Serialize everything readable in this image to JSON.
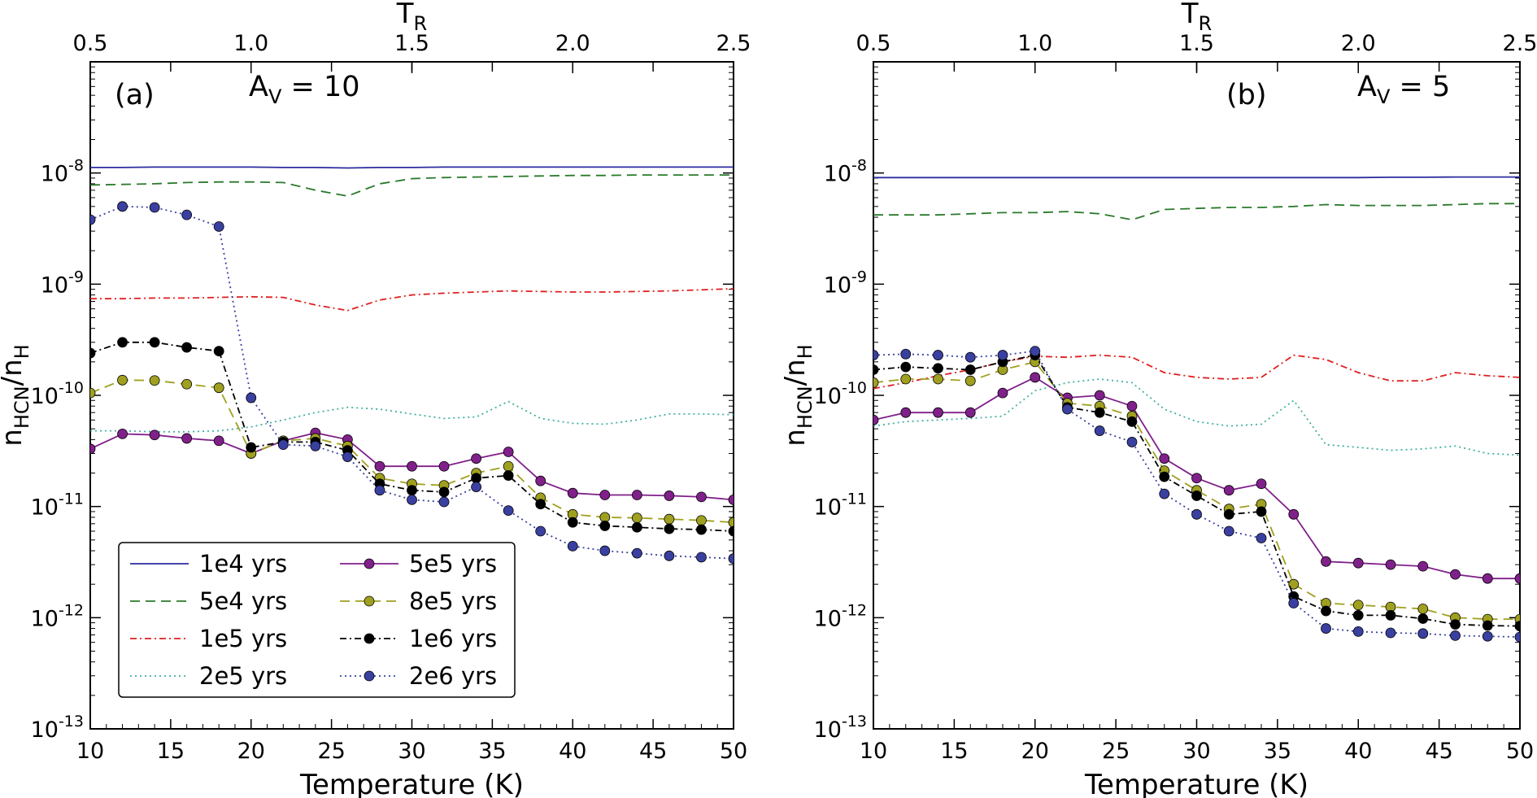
{
  "chart_data": [
    {
      "type": "line",
      "panel_label": "(a)",
      "annotation": {
        "main": "A",
        "sub": "V",
        "rest": " = 10"
      },
      "xlabel": "Temperature (K)",
      "ylabel": {
        "main": "n",
        "sub": "HCN",
        "slash": "/n",
        "sub2": "H"
      },
      "top_xlabel": {
        "main": "T",
        "sub": "R"
      },
      "xlim": [
        10,
        50
      ],
      "ylim": [
        1e-13,
        1e-07
      ],
      "yscale": "log",
      "x_ticks": [
        "10",
        "15",
        "20",
        "25",
        "30",
        "35",
        "40",
        "45",
        "50"
      ],
      "top_ticks": [
        "0.5",
        "1.0",
        "1.5",
        "2.0",
        "2.5"
      ],
      "y_ticks": [
        {
          "value": 1e-08,
          "base": "10",
          "exp": "-8"
        },
        {
          "value": 1e-09,
          "base": "10",
          "exp": "-9"
        },
        {
          "value": 1e-10,
          "base": "10",
          "exp": "-10"
        },
        {
          "value": 1e-11,
          "base": "10",
          "exp": "-11"
        },
        {
          "value": 1e-12,
          "base": "10",
          "exp": "-12"
        },
        {
          "value": 1e-13,
          "base": "10",
          "exp": "-13"
        }
      ],
      "x": [
        10,
        12,
        14,
        16,
        18,
        20,
        22,
        24,
        26,
        28,
        30,
        32,
        34,
        36,
        38,
        40,
        42,
        44,
        46,
        48,
        50
      ],
      "series": [
        {
          "name": "1e4 yrs",
          "color": "#2c2ca0",
          "dash": "",
          "marker": false,
          "values": [
            1.12e-08,
            1.12e-08,
            1.13e-08,
            1.13e-08,
            1.13e-08,
            1.13e-08,
            1.12e-08,
            1.12e-08,
            1.11e-08,
            1.12e-08,
            1.12e-08,
            1.13e-08,
            1.13e-08,
            1.13e-08,
            1.13e-08,
            1.13e-08,
            1.13e-08,
            1.13e-08,
            1.13e-08,
            1.13e-08,
            1.13e-08
          ]
        },
        {
          "name": "5e4 yrs",
          "color": "#2a7a2a",
          "dash": "12 7",
          "marker": false,
          "values": [
            7.8e-09,
            7.9e-09,
            8e-09,
            8.2e-09,
            8.3e-09,
            8.3e-09,
            8.2e-09,
            7e-09,
            6.2e-09,
            8e-09,
            8.9e-09,
            9.1e-09,
            9.2e-09,
            9.3e-09,
            9.4e-09,
            9.5e-09,
            9.5e-09,
            9.6e-09,
            9.6e-09,
            9.6e-09,
            9.6e-09
          ]
        },
        {
          "name": "1e5 yrs",
          "color": "#e02020",
          "dash": "8 4 2 4",
          "marker": false,
          "values": [
            7.4e-10,
            7.4e-10,
            7.5e-10,
            7.5e-10,
            7.6e-10,
            7.7e-10,
            7.6e-10,
            6.5e-10,
            5.8e-10,
            7.2e-10,
            8e-10,
            8.3e-10,
            8.5e-10,
            8.7e-10,
            8.6e-10,
            8.5e-10,
            8.5e-10,
            8.6e-10,
            8.7e-10,
            8.9e-10,
            9.1e-10
          ]
        },
        {
          "name": "2e5 yrs",
          "color": "#40b0a0",
          "dash": "2 4",
          "marker": false,
          "values": [
            4.8e-11,
            4.8e-11,
            4.7e-11,
            4.7e-11,
            4.8e-11,
            5.2e-11,
            6e-11,
            7e-11,
            7.8e-11,
            7.5e-11,
            6.8e-11,
            6.2e-11,
            6.4e-11,
            8.8e-11,
            6.2e-11,
            5.6e-11,
            5.5e-11,
            6e-11,
            6.8e-11,
            6.8e-11,
            6.7e-11
          ]
        },
        {
          "name": "5e5 yrs",
          "color": "#80208a",
          "dash": "",
          "marker": true,
          "values": [
            3.3e-11,
            4.5e-11,
            4.4e-11,
            4.1e-11,
            3.9e-11,
            3e-11,
            3.9e-11,
            4.6e-11,
            4e-11,
            2.3e-11,
            2.3e-11,
            2.3e-11,
            2.7e-11,
            3.1e-11,
            1.7e-11,
            1.32e-11,
            1.27e-11,
            1.27e-11,
            1.25e-11,
            1.22e-11,
            1.15e-11
          ]
        },
        {
          "name": "8e5 yrs",
          "color": "#a0a020",
          "dash": "12 7",
          "marker": true,
          "values": [
            1.05e-10,
            1.37e-10,
            1.36e-10,
            1.26e-10,
            1.17e-10,
            3e-11,
            3.9e-11,
            4.1e-11,
            3.5e-11,
            1.8e-11,
            1.6e-11,
            1.55e-11,
            2e-11,
            2.3e-11,
            1.2e-11,
            8.5e-12,
            8e-12,
            7.9e-12,
            7.7e-12,
            7.5e-12,
            7.2e-12
          ]
        },
        {
          "name": "1e6 yrs",
          "color": "#000000",
          "dash": "8 4 2 4",
          "marker": true,
          "values": [
            2.4e-10,
            3e-10,
            3e-10,
            2.7e-10,
            2.5e-10,
            3.4e-11,
            3.8e-11,
            3.8e-11,
            3.2e-11,
            1.6e-11,
            1.4e-11,
            1.35e-11,
            1.8e-11,
            1.9e-11,
            1.05e-11,
            7.2e-12,
            6.7e-12,
            6.5e-12,
            6.3e-12,
            6.2e-12,
            6e-12
          ]
        },
        {
          "name": "2e6 yrs",
          "color": "#3a40a0",
          "dash": "2 4",
          "marker": true,
          "values": [
            3.8e-09,
            5e-09,
            4.9e-09,
            4.2e-09,
            3.3e-09,
            9.5e-11,
            3.6e-11,
            3.5e-11,
            2.8e-11,
            1.4e-11,
            1.15e-11,
            1.1e-11,
            1.5e-11,
            9.2e-12,
            6e-12,
            4.4e-12,
            4e-12,
            3.8e-12,
            3.6e-12,
            3.5e-12,
            3.4e-12
          ]
        }
      ],
      "legend": {
        "placement": "lower-left",
        "columns": 2
      }
    },
    {
      "type": "line",
      "panel_label": "(b)",
      "annotation": {
        "main": "A",
        "sub": "V",
        "rest": " = 5"
      },
      "xlabel": "Temperature (K)",
      "ylabel": {
        "main": "n",
        "sub": "HCN",
        "slash": "/n",
        "sub2": "H"
      },
      "top_xlabel": {
        "main": "T",
        "sub": "R"
      },
      "xlim": [
        10,
        50
      ],
      "ylim": [
        1e-13,
        1e-07
      ],
      "yscale": "log",
      "x_ticks": [
        "10",
        "15",
        "20",
        "25",
        "30",
        "35",
        "40",
        "45",
        "50"
      ],
      "top_ticks": [
        "0.5",
        "1.0",
        "1.5",
        "2.0",
        "2.5"
      ],
      "y_ticks": [
        {
          "value": 1e-08,
          "base": "10",
          "exp": "-8"
        },
        {
          "value": 1e-09,
          "base": "10",
          "exp": "-9"
        },
        {
          "value": 1e-10,
          "base": "10",
          "exp": "-10"
        },
        {
          "value": 1e-11,
          "base": "10",
          "exp": "-11"
        },
        {
          "value": 1e-12,
          "base": "10",
          "exp": "-12"
        },
        {
          "value": 1e-13,
          "base": "10",
          "exp": "-13"
        }
      ],
      "x": [
        10,
        12,
        14,
        16,
        18,
        20,
        22,
        24,
        26,
        28,
        30,
        32,
        34,
        36,
        38,
        40,
        42,
        44,
        46,
        48,
        50
      ],
      "series": [
        {
          "name": "1e4 yrs",
          "color": "#2c2ca0",
          "dash": "",
          "marker": false,
          "values": [
            9.1e-09,
            9.1e-09,
            9.1e-09,
            9.1e-09,
            9.1e-09,
            9.1e-09,
            9.1e-09,
            9.1e-09,
            9.1e-09,
            9.1e-09,
            9.1e-09,
            9.1e-09,
            9.1e-09,
            9.1e-09,
            9.1e-09,
            9.1e-09,
            9.15e-09,
            9.15e-09,
            9.2e-09,
            9.2e-09,
            9.2e-09
          ]
        },
        {
          "name": "5e4 yrs",
          "color": "#2a7a2a",
          "dash": "12 7",
          "marker": false,
          "values": [
            4.2e-09,
            4.2e-09,
            4.2e-09,
            4.3e-09,
            4.4e-09,
            4.4e-09,
            4.5e-09,
            4.3e-09,
            3.8e-09,
            4.7e-09,
            4.8e-09,
            4.9e-09,
            4.9e-09,
            5e-09,
            5.2e-09,
            5.1e-09,
            5.1e-09,
            5.1e-09,
            5.2e-09,
            5.3e-09,
            5.3e-09
          ]
        },
        {
          "name": "1e5 yrs",
          "color": "#e02020",
          "dash": "8 4 2 4",
          "marker": false,
          "values": [
            1.15e-10,
            1.3e-10,
            1.5e-10,
            1.7e-10,
            2e-10,
            2.25e-10,
            2.2e-10,
            2.3e-10,
            2.2e-10,
            1.6e-10,
            1.45e-10,
            1.4e-10,
            1.45e-10,
            2.3e-10,
            2.1e-10,
            1.6e-10,
            1.35e-10,
            1.35e-10,
            1.6e-10,
            1.5e-10,
            1.45e-10
          ]
        },
        {
          "name": "2e5 yrs",
          "color": "#40b0a0",
          "dash": "2 4",
          "marker": false,
          "values": [
            5.3e-11,
            5.8e-11,
            6e-11,
            6.2e-11,
            6.5e-11,
            1.1e-10,
            1.3e-10,
            1.4e-10,
            1.3e-10,
            7.5e-11,
            5.8e-11,
            5.3e-11,
            5.5e-11,
            9e-11,
            3.6e-11,
            3.4e-11,
            3.2e-11,
            3.3e-11,
            3.5e-11,
            3e-11,
            2.9e-11
          ]
        },
        {
          "name": "5e5 yrs",
          "color": "#80208a",
          "dash": "",
          "marker": true,
          "values": [
            6e-11,
            7e-11,
            7e-11,
            7e-11,
            1.05e-10,
            1.45e-10,
            9.5e-11,
            1e-10,
            8e-11,
            2.7e-11,
            1.8e-11,
            1.4e-11,
            1.6e-11,
            8.5e-12,
            3.2e-12,
            3.1e-12,
            3e-12,
            2.9e-12,
            2.45e-12,
            2.25e-12,
            2.25e-12
          ]
        },
        {
          "name": "8e5 yrs",
          "color": "#a0a020",
          "dash": "12 7",
          "marker": true,
          "values": [
            1.3e-10,
            1.4e-10,
            1.4e-10,
            1.35e-10,
            1.7e-10,
            2e-10,
            8.5e-11,
            8e-11,
            6.5e-11,
            2.1e-11,
            1.4e-11,
            9.5e-12,
            1.05e-11,
            2e-12,
            1.35e-12,
            1.3e-12,
            1.25e-12,
            1.2e-12,
            1e-12,
            9.7e-13,
            9.7e-13
          ]
        },
        {
          "name": "1e6 yrs",
          "color": "#000000",
          "dash": "8 4 2 4",
          "marker": true,
          "values": [
            1.7e-10,
            1.8e-10,
            1.75e-10,
            1.7e-10,
            2e-10,
            2.3e-10,
            7.8e-11,
            7e-11,
            5.8e-11,
            1.85e-11,
            1.25e-11,
            8.5e-12,
            9e-12,
            1.55e-12,
            1.15e-12,
            1.05e-12,
            1.05e-12,
            9.8e-13,
            8.7e-13,
            8.5e-13,
            8.4e-13
          ]
        },
        {
          "name": "2e6 yrs",
          "color": "#3a40a0",
          "dash": "2 4",
          "marker": true,
          "values": [
            2.3e-10,
            2.35e-10,
            2.3e-10,
            2.2e-10,
            2.3e-10,
            2.5e-10,
            7.5e-11,
            4.8e-11,
            3.8e-11,
            1.3e-11,
            8.5e-12,
            6e-12,
            5.2e-12,
            1.35e-12,
            8e-13,
            7.5e-13,
            7.3e-13,
            7.2e-13,
            6.9e-13,
            6.8e-13,
            6.7e-13
          ]
        }
      ]
    }
  ]
}
